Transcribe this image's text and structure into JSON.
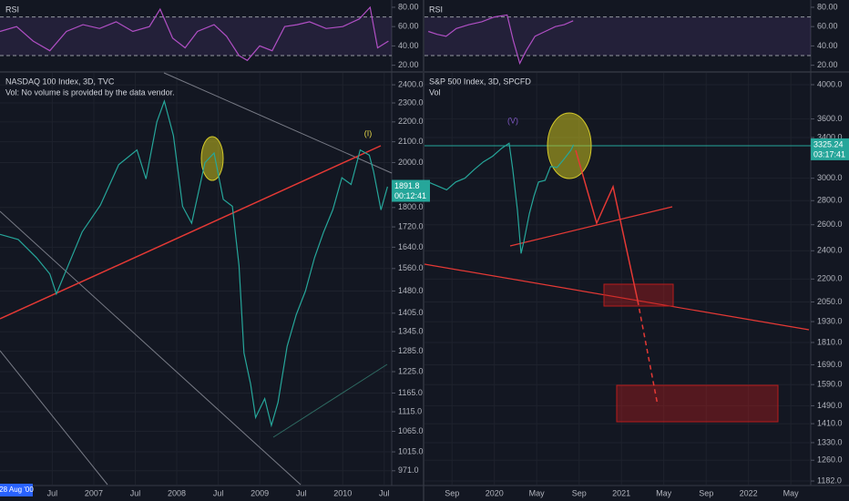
{
  "chart_data": [
    {
      "type": "line",
      "title": "RSI",
      "color": "#b04fc4",
      "x": [
        2005.87,
        2006.07,
        2006.27,
        2006.47,
        2006.67,
        2006.87,
        2007.07,
        2007.27,
        2007.47,
        2007.67,
        2007.8,
        2007.95,
        2008.1,
        2008.25,
        2008.45,
        2008.6,
        2008.75,
        2008.85,
        2009.0,
        2009.15,
        2009.3,
        2009.45,
        2009.6,
        2009.8,
        2010.0,
        2010.2,
        2010.33,
        2010.42,
        2010.55
      ],
      "values": [
        55,
        60,
        45,
        35,
        55,
        62,
        58,
        65,
        55,
        60,
        78,
        48,
        38,
        55,
        62,
        50,
        30,
        25,
        40,
        35,
        60,
        62,
        65,
        58,
        60,
        68,
        80,
        38,
        45
      ],
      "xlim": [
        2005.87,
        2010.59
      ],
      "ylim": [
        14,
        87.5
      ],
      "band_lines": [
        70,
        30
      ],
      "yticks": [
        {
          "value": 80,
          "label": "80.00"
        },
        {
          "value": 60,
          "label": "60.00"
        },
        {
          "value": 40,
          "label": "40.00"
        },
        {
          "value": 20,
          "label": "20.00"
        }
      ]
    },
    {
      "type": "line",
      "title": "NASDAQ 100 Index, 3D, TVC",
      "subtitle": "Vol: No volume is provided by the data vendor.",
      "color": "#26a69a",
      "log_scale": true,
      "grid": true,
      "x": [
        2005.87,
        2006.09,
        2006.31,
        2006.47,
        2006.55,
        2006.69,
        2006.86,
        2007.08,
        2007.3,
        2007.52,
        2007.63,
        2007.76,
        2007.85,
        2007.96,
        2008.07,
        2008.18,
        2008.34,
        2008.45,
        2008.56,
        2008.67,
        2008.75,
        2008.81,
        2008.89,
        2008.95,
        2009.06,
        2009.14,
        2009.22,
        2009.33,
        2009.44,
        2009.55,
        2009.66,
        2009.77,
        2009.88,
        2009.99,
        2010.1,
        2010.21,
        2010.32,
        2010.37,
        2010.46,
        2010.54
      ],
      "values": [
        1690,
        1670,
        1600,
        1540,
        1470,
        1570,
        1700,
        1810,
        1990,
        2060,
        1925,
        2200,
        2310,
        2130,
        1805,
        1735,
        2000,
        2045,
        1835,
        1805,
        1570,
        1280,
        1190,
        1100,
        1150,
        1080,
        1140,
        1300,
        1400,
        1480,
        1600,
        1700,
        1790,
        1930,
        1900,
        2060,
        2035,
        1960,
        1790,
        1890
      ],
      "xlim": [
        2005.87,
        2010.59
      ],
      "ylim": [
        940,
        2468
      ],
      "yticks": [
        {
          "value": 2400,
          "label": "2400.0"
        },
        {
          "value": 2300,
          "label": "2300.0"
        },
        {
          "value": 2200,
          "label": "2200.0"
        },
        {
          "value": 2100,
          "label": "2100.0"
        },
        {
          "value": 2000,
          "label": "2000.0"
        },
        {
          "value": 1800,
          "label": "1800.0"
        },
        {
          "value": 1720,
          "label": "1720.0"
        },
        {
          "value": 1640,
          "label": "1640.0"
        },
        {
          "value": 1560,
          "label": "1560.0"
        },
        {
          "value": 1480,
          "label": "1480.0"
        },
        {
          "value": 1405,
          "label": "1405.0"
        },
        {
          "value": 1345,
          "label": "1345.0"
        },
        {
          "value": 1285,
          "label": "1285.0"
        },
        {
          "value": 1225,
          "label": "1225.0"
        },
        {
          "value": 1165,
          "label": "1165.0"
        },
        {
          "value": 1115,
          "label": "1115.0"
        },
        {
          "value": 1065,
          "label": "1065.0"
        },
        {
          "value": 1015,
          "label": "1015.0"
        },
        {
          "value": 971,
          "label": "971.0"
        }
      ],
      "xticks": [
        {
          "value": 2006.5,
          "label": "Jul"
        },
        {
          "value": 2007,
          "label": "2007"
        },
        {
          "value": 2007.5,
          "label": "Jul"
        },
        {
          "value": 2008,
          "label": "2008"
        },
        {
          "value": 2008.5,
          "label": "Jul"
        },
        {
          "value": 2009,
          "label": "2009"
        },
        {
          "value": 2009.5,
          "label": "Jul"
        },
        {
          "value": 2010,
          "label": "2010"
        },
        {
          "value": 2010.5,
          "label": "Jul"
        }
      ],
      "last_price": 1891.8,
      "countdown": "00:12:41",
      "annotations": [
        "(I)"
      ],
      "cursor_label": "28 Aug '00"
    },
    {
      "type": "line",
      "title": "RSI",
      "color": "#b04fc4",
      "x": [
        2019.48,
        2019.55,
        2019.62,
        2019.7,
        2019.8,
        2019.9,
        2020.0,
        2020.1,
        2020.15,
        2020.2,
        2020.25,
        2020.32,
        2020.4,
        2020.48,
        2020.55,
        2020.62
      ],
      "values": [
        55,
        52,
        50,
        58,
        62,
        65,
        70,
        72,
        45,
        22,
        35,
        50,
        55,
        60,
        62,
        66
      ],
      "xlim": [
        2019.45,
        2022.49
      ],
      "ylim": [
        14,
        87.5
      ],
      "band_lines": [
        70,
        30
      ],
      "yticks": [
        {
          "value": 80,
          "label": "80.00"
        },
        {
          "value": 60,
          "label": "60.00"
        },
        {
          "value": 40,
          "label": "40.00"
        },
        {
          "value": 20,
          "label": "20.00"
        }
      ]
    },
    {
      "type": "line",
      "title": "S&P 500 Index, 3D, SPCFD",
      "subtitle": "Vol",
      "color": "#26a69a",
      "log_scale": true,
      "grid": true,
      "x": [
        2019.479,
        2019.551,
        2019.624,
        2019.696,
        2019.768,
        2019.841,
        2019.913,
        2019.986,
        2020.058,
        2020.116,
        2020.145,
        2020.181,
        2020.21,
        2020.232,
        2020.275,
        2020.312,
        2020.348,
        2020.399,
        2020.442,
        2020.493,
        2020.544,
        2020.602,
        2020.623
      ],
      "values": [
        2965,
        2930,
        2895,
        2965,
        3000,
        3080,
        3155,
        3210,
        3290,
        3340,
        3080,
        2720,
        2380,
        2470,
        2690,
        2840,
        2965,
        2980,
        3110,
        3100,
        3175,
        3270,
        3325.24
      ],
      "xlim": [
        2019.45,
        2022.49
      ],
      "ylim": [
        1169,
        4148
      ],
      "yticks": [
        {
          "value": 4000,
          "label": "4000.0"
        },
        {
          "value": 3600,
          "label": "3600.0"
        },
        {
          "value": 3400,
          "label": "3400.0"
        },
        {
          "value": 3000,
          "label": "3000.0"
        },
        {
          "value": 2800,
          "label": "2800.0"
        },
        {
          "value": 2600,
          "label": "2600.0"
        },
        {
          "value": 2400,
          "label": "2400.0"
        },
        {
          "value": 2200,
          "label": "2200.0"
        },
        {
          "value": 2050,
          "label": "2050.0"
        },
        {
          "value": 1930,
          "label": "1930.0"
        },
        {
          "value": 1810,
          "label": "1810.0"
        },
        {
          "value": 1690,
          "label": "1690.0"
        },
        {
          "value": 1590,
          "label": "1590.0"
        },
        {
          "value": 1490,
          "label": "1490.0"
        },
        {
          "value": 1410,
          "label": "1410.0"
        },
        {
          "value": 1330,
          "label": "1330.0"
        },
        {
          "value": 1260,
          "label": "1260.0"
        },
        {
          "value": 1182,
          "label": "1182.0"
        }
      ],
      "xticks": [
        {
          "value": 2019.667,
          "label": "Sep"
        },
        {
          "value": 2020,
          "label": "2020"
        },
        {
          "value": 2020.333,
          "label": "May"
        },
        {
          "value": 2020.667,
          "label": "Sep"
        },
        {
          "value": 2021,
          "label": "2021"
        },
        {
          "value": 2021.333,
          "label": "May"
        },
        {
          "value": 2021.667,
          "label": "Sep"
        },
        {
          "value": 2022,
          "label": "2022"
        },
        {
          "value": 2022.333,
          "label": "May"
        }
      ],
      "last_price": 3325.24,
      "countdown": "03:17:41",
      "annotations": [
        "(V)"
      ]
    }
  ]
}
